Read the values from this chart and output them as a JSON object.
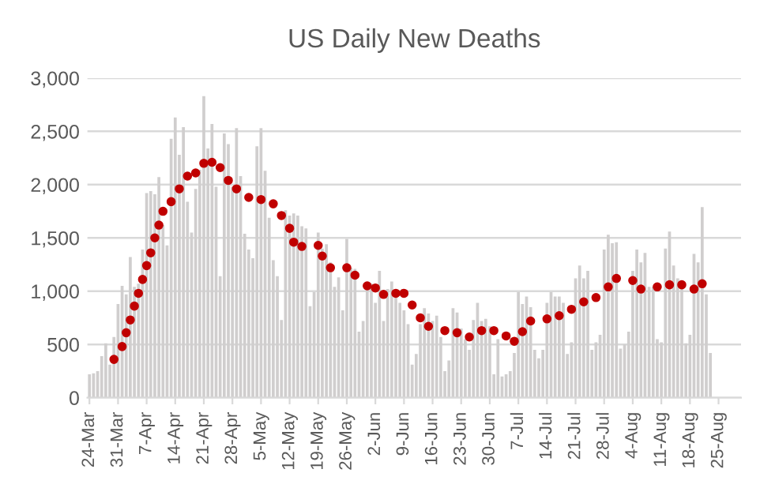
{
  "chart_data": {
    "type": "bar",
    "title": "US Daily New Deaths",
    "categories": [
      "24-Mar",
      null,
      null,
      null,
      null,
      null,
      null,
      "31-Mar",
      null,
      null,
      null,
      null,
      null,
      null,
      "7-Apr",
      null,
      null,
      null,
      null,
      null,
      null,
      "14-Apr",
      null,
      null,
      null,
      null,
      null,
      null,
      "21-Apr",
      null,
      null,
      null,
      null,
      null,
      null,
      "28-Apr",
      null,
      null,
      null,
      null,
      null,
      null,
      "5-May",
      null,
      null,
      null,
      null,
      null,
      null,
      "12-May",
      null,
      null,
      null,
      null,
      null,
      null,
      "19-May",
      null,
      null,
      null,
      null,
      null,
      null,
      "26-May",
      null,
      null,
      null,
      null,
      null,
      null,
      "2-Jun",
      null,
      null,
      null,
      null,
      null,
      null,
      "9-Jun",
      null,
      null,
      null,
      null,
      null,
      null,
      "16-Jun",
      null,
      null,
      null,
      null,
      null,
      null,
      "23-Jun",
      null,
      null,
      null,
      null,
      null,
      null,
      "30-Jun",
      null,
      null,
      null,
      null,
      null,
      null,
      "7-Jul",
      null,
      null,
      null,
      null,
      null,
      null,
      "14-Jul",
      null,
      null,
      null,
      null,
      null,
      null,
      "21-Jul",
      null,
      null,
      null,
      null,
      null,
      null,
      "28-Jul",
      null,
      null,
      null,
      null,
      null,
      null,
      "4-Aug",
      null,
      null,
      null,
      null,
      null,
      null,
      "11-Aug",
      null,
      null,
      null,
      null,
      null,
      null,
      "18-Aug",
      null,
      null,
      null,
      null,
      null,
      null,
      "25-Aug",
      null,
      null,
      null,
      null,
      null
    ],
    "series": [
      {
        "color": "#d0cece",
        "values": [
          220,
          230,
          250,
          390,
          510,
          310,
          570,
          880,
          1050,
          970,
          1320,
          1040,
          1070,
          1390,
          1920,
          1940,
          1910,
          2070,
          1620,
          1430,
          2430,
          2630,
          2280,
          2540,
          1840,
          1550,
          1960,
          2140,
          2830,
          2340,
          2570,
          1980,
          1140,
          2480,
          2380,
          1980,
          2530,
          2080,
          1540,
          1390,
          1310,
          2360,
          2530,
          2130,
          1690,
          1290,
          1140,
          730,
          1760,
          1710,
          1730,
          1710,
          1610,
          1590,
          860,
          990,
          1550,
          1400,
          1440,
          1270,
          1040,
          1130,
          820,
          1490,
          1220,
          1210,
          620,
          720,
          1020,
          1070,
          890,
          1190,
          720,
          1020,
          1090,
          940,
          890,
          820,
          690,
          310,
          410,
          690,
          840,
          790,
          720,
          770,
          570,
          250,
          350,
          840,
          800,
          650,
          550,
          450,
          730,
          890,
          720,
          740,
          670,
          220,
          550,
          200,
          220,
          250,
          420,
          990,
          880,
          950,
          850,
          450,
          370,
          450,
          890,
          990,
          950,
          950,
          890,
          410,
          520,
          1120,
          1240,
          1120,
          1190,
          450,
          520,
          590,
          1390,
          1530,
          1450,
          1460,
          460,
          500,
          620,
          1190,
          1390,
          1270,
          1360,
          1040,
          1040,
          550,
          520,
          1400,
          1560,
          1240,
          1120,
          1040,
          510,
          590,
          1350,
          1270,
          1790,
          970,
          420,
          null,
          null,
          null,
          null,
          null,
          null,
          null
        ]
      },
      {
        "type": "scatter",
        "color": "#c00000",
        "marker": "circle",
        "values": [
          null,
          null,
          null,
          null,
          null,
          null,
          360,
          null,
          480,
          610,
          730,
          860,
          980,
          1110,
          1240,
          1360,
          1500,
          1620,
          1750,
          null,
          1840,
          null,
          1960,
          null,
          2080,
          null,
          2110,
          null,
          2200,
          null,
          2210,
          null,
          2160,
          null,
          2040,
          null,
          1960,
          null,
          null,
          1880,
          null,
          null,
          1860,
          null,
          null,
          1820,
          null,
          1710,
          null,
          1590,
          1460,
          null,
          1420,
          null,
          null,
          null,
          1430,
          1330,
          null,
          1220,
          null,
          null,
          null,
          1220,
          null,
          1150,
          null,
          null,
          1050,
          null,
          1030,
          null,
          970,
          null,
          null,
          980,
          null,
          980,
          null,
          870,
          null,
          750,
          null,
          670,
          null,
          null,
          null,
          630,
          null,
          null,
          610,
          null,
          null,
          570,
          null,
          null,
          630,
          null,
          null,
          630,
          null,
          null,
          580,
          null,
          530,
          null,
          620,
          null,
          720,
          null,
          null,
          null,
          740,
          null,
          null,
          770,
          null,
          null,
          830,
          null,
          null,
          900,
          null,
          null,
          940,
          null,
          null,
          1040,
          null,
          1120,
          null,
          null,
          null,
          1100,
          null,
          1020,
          null,
          null,
          null,
          1040,
          null,
          null,
          1060,
          null,
          null,
          1060,
          null,
          null,
          1020,
          null,
          1070,
          null,
          null,
          null,
          null,
          null,
          null,
          null,
          null,
          null
        ]
      }
    ],
    "ylim": [
      0,
      3000
    ],
    "yticks": [
      0,
      {
        "value": 500,
        "label": "500"
      },
      {
        "value": 1000,
        "label": "1,000"
      },
      {
        "value": 1500,
        "label": "1,500"
      },
      {
        "value": 2000,
        "label": "2,000"
      },
      {
        "value": 2500,
        "label": "2,500"
      },
      {
        "value": 3000,
        "label": "3,000"
      }
    ],
    "grid": "y",
    "legend": false
  }
}
